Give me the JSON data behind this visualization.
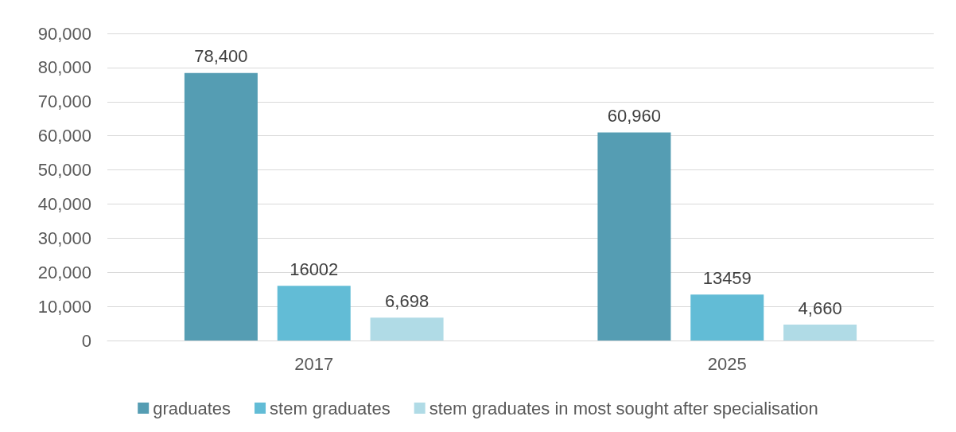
{
  "chart_data": {
    "type": "bar",
    "categories": [
      "2017",
      "2025"
    ],
    "series": [
      {
        "name": "graduates",
        "color": "#559db3",
        "values": [
          78400,
          60960
        ],
        "value_labels": [
          "78,400",
          "60,960"
        ]
      },
      {
        "name": "stem graduates",
        "color": "#62bcd6",
        "values": [
          16002,
          13459
        ],
        "value_labels": [
          "16002",
          "13459"
        ]
      },
      {
        "name": "stem graduates in most sought after specialisation",
        "color": "#b0dbe6",
        "values": [
          6698,
          4660
        ],
        "value_labels": [
          "6,698",
          "4,660"
        ]
      }
    ],
    "ylim": [
      0,
      90000
    ],
    "yticks": [
      0,
      {
        "value": 10000,
        "label": "10,000"
      },
      {
        "value": 20000,
        "label": "20,000"
      },
      {
        "value": 30000,
        "label": "30,000"
      },
      {
        "value": 40000,
        "label": "40,000"
      },
      {
        "value": 50000,
        "label": "50,000"
      },
      {
        "value": 60000,
        "label": "60,000"
      },
      {
        "value": 70000,
        "label": "70,000"
      },
      {
        "value": 80000,
        "label": "80,000"
      },
      {
        "value": 90000,
        "label": "90,000"
      }
    ],
    "grid": "y",
    "legend": "bottom"
  }
}
